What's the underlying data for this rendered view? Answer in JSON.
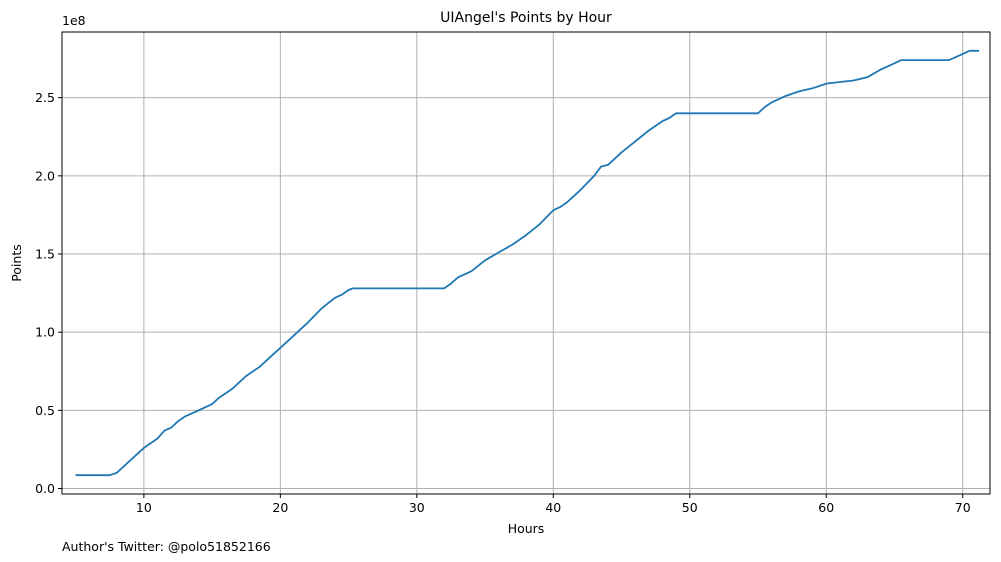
{
  "chart_data": {
    "type": "line",
    "title": "UIAngel's Points by Hour",
    "xlabel": "Hours",
    "ylabel": "Points",
    "y_multiplier_label": "1e8",
    "xlim": [
      4,
      72
    ],
    "ylim": [
      -3500000,
      292000000
    ],
    "x_ticks": [
      10,
      20,
      30,
      40,
      50,
      60,
      70
    ],
    "x_tick_labels": [
      "10",
      "20",
      "30",
      "40",
      "50",
      "60",
      "70"
    ],
    "y_ticks": [
      0,
      50000000,
      100000000,
      150000000,
      200000000,
      250000000
    ],
    "y_tick_labels": [
      "0.0",
      "0.5",
      "1.0",
      "1.5",
      "2.0",
      "2.5"
    ],
    "grid": true,
    "line_color": "#1f77b4",
    "series": [
      {
        "x": [
          5,
          7.5,
          8,
          9,
          10,
          11,
          11.5,
          12,
          12.5,
          13,
          14,
          15,
          15.5,
          16,
          16.5,
          17,
          17.5,
          18,
          18.5,
          19,
          19.5,
          20,
          21,
          22,
          23,
          24,
          24.5,
          25,
          25.3,
          32,
          32.5,
          33,
          34,
          35,
          36,
          37,
          38,
          39,
          40,
          40.5,
          41,
          42,
          43,
          43.5,
          44,
          45,
          46,
          47,
          48,
          48.5,
          49,
          49.3,
          55,
          55.5,
          56,
          57,
          58,
          59,
          60,
          61,
          62,
          63,
          64,
          65,
          65.5,
          66,
          69,
          70,
          70.5,
          71.2
        ],
        "y": [
          8500000,
          8500000,
          10000000,
          18000000,
          26000000,
          32000000,
          37000000,
          39000000,
          43000000,
          46000000,
          50000000,
          54000000,
          58000000,
          61000000,
          64000000,
          68000000,
          72000000,
          75000000,
          78000000,
          82000000,
          86000000,
          90000000,
          98000000,
          106000000,
          115000000,
          122000000,
          124000000,
          127000000,
          128000000,
          128000000,
          131000000,
          135000000,
          139000000,
          146000000,
          151000000,
          156000000,
          162000000,
          169000000,
          178000000,
          180000000,
          183000000,
          191000000,
          200000000,
          206000000,
          207000000,
          215000000,
          222000000,
          229000000,
          235000000,
          237000000,
          240000000,
          240000000,
          240000000,
          244000000,
          247000000,
          251000000,
          254000000,
          256000000,
          259000000,
          260000000,
          261000000,
          263000000,
          268000000,
          272000000,
          274000000,
          274000000,
          274000000,
          278000000,
          280000000,
          280000000
        ]
      }
    ]
  },
  "footer": {
    "author_text": "Author's Twitter: @polo51852166"
  }
}
